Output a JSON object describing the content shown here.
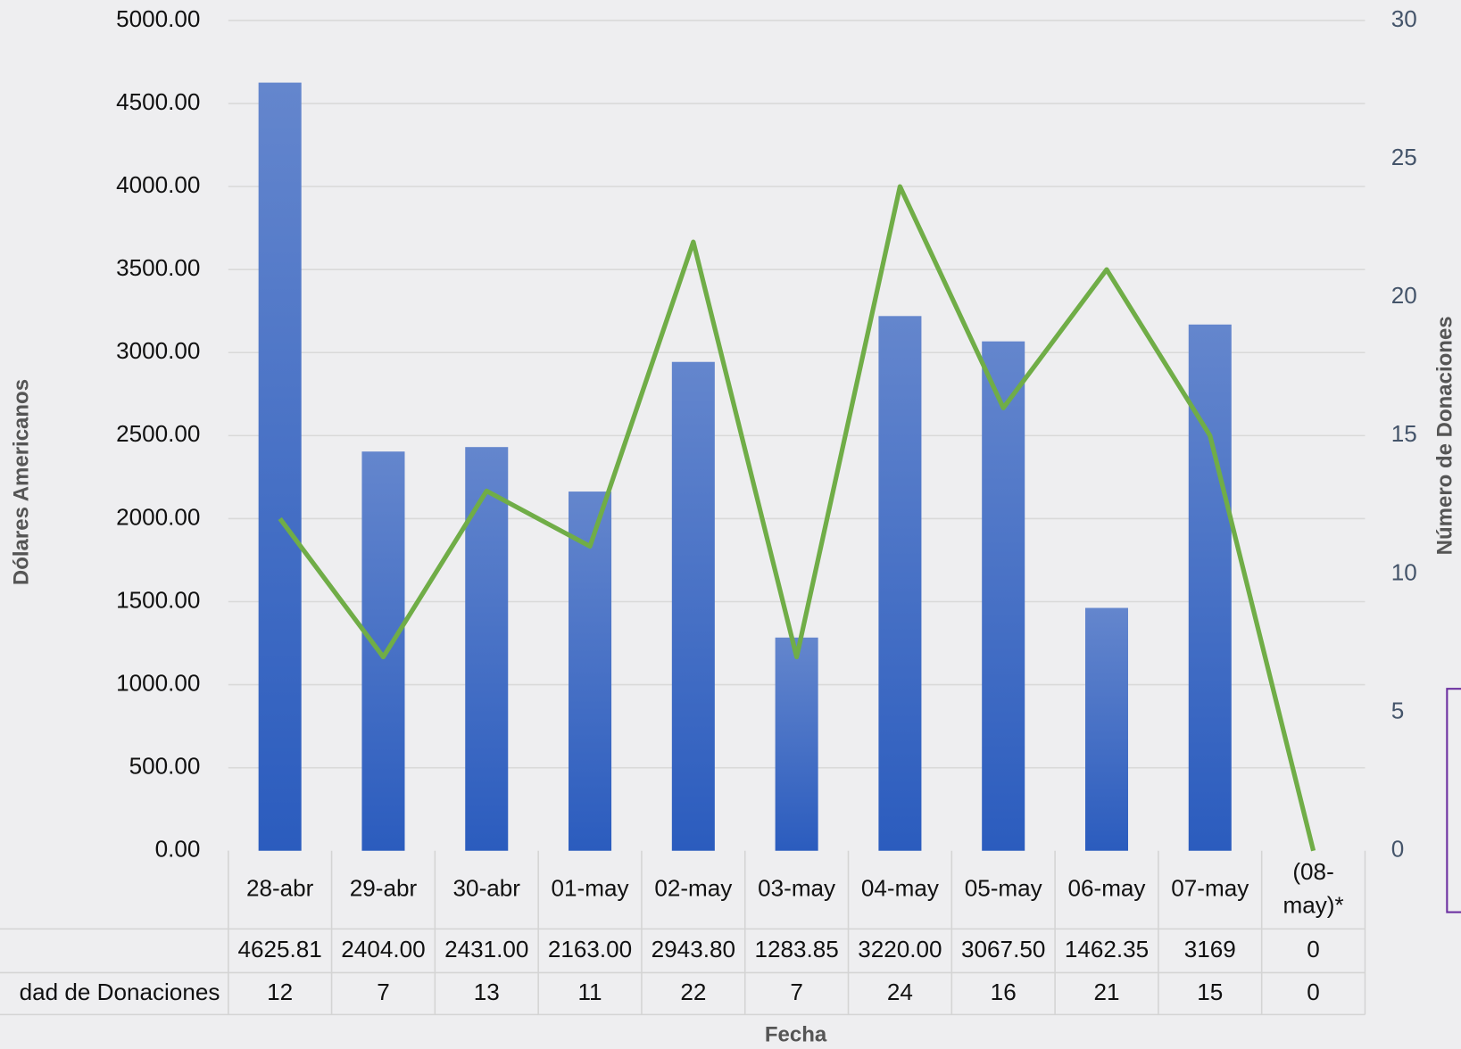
{
  "chart_data": {
    "type": "bar_line",
    "x_label": "Fecha",
    "y_label": "Dólares Americanos",
    "y2_label": "Número de Donaciones",
    "categories": [
      "28-abr",
      "29-abr",
      "30-abr",
      "01-may",
      "02-may",
      "03-may",
      "04-may",
      "05-may",
      "06-may",
      "07-may",
      "(08-may)*"
    ],
    "series": [
      {
        "name": null,
        "type": "bar",
        "color": "#4472c4",
        "axis": "y",
        "values": [
          4625.81,
          2404,
          2431,
          2163,
          2943.8,
          1283.85,
          3220,
          3067.5,
          1462.35,
          3169,
          0
        ],
        "value_labels": [
          "4625.81",
          "2404.00",
          "2431.00",
          "2163.00",
          "2943.80",
          "1283.85",
          "3220.00",
          "3067.50",
          "1462.35",
          "3169",
          "0"
        ]
      },
      {
        "name": "dad de Donaciones",
        "type": "line",
        "color": "#70ad47",
        "axis": "y2",
        "values": [
          12,
          7,
          13,
          11,
          22,
          7,
          24,
          16,
          21,
          15,
          0
        ]
      }
    ],
    "ylim": [
      0,
      5000
    ],
    "yticks": [
      {
        "value": 0,
        "label": "0.00"
      },
      {
        "value": 500,
        "label": "500.00"
      },
      {
        "value": 1000,
        "label": "1000.00"
      },
      {
        "value": 1500,
        "label": "1500.00"
      },
      {
        "value": 2000,
        "label": "2000.00"
      },
      {
        "value": 2500,
        "label": "2500.00"
      },
      {
        "value": 3000,
        "label": "3000.00"
      },
      {
        "value": 3500,
        "label": "3500.00"
      },
      {
        "value": 4000,
        "label": "4000.00"
      },
      {
        "value": 4500,
        "label": "4500.00"
      },
      {
        "value": 5000,
        "label": "5000.00"
      }
    ],
    "y2lim": [
      0,
      30
    ],
    "y2ticks": [
      0,
      5,
      10,
      15,
      20,
      25,
      30
    ],
    "grid": true,
    "data_table": true
  }
}
